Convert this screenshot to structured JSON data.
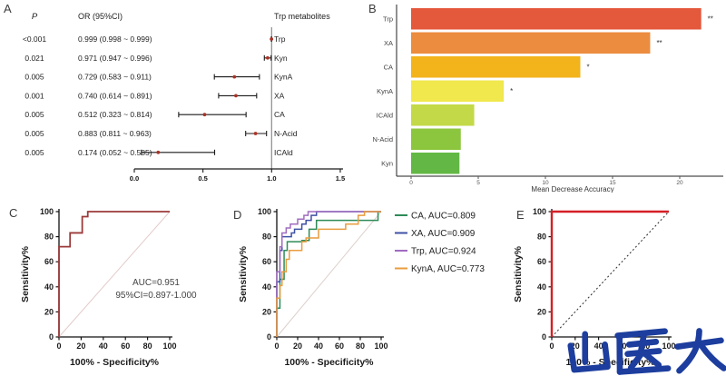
{
  "figure": {
    "background": "#ffffff",
    "watermark_text": "山医大",
    "watermark_color": "#1d3e9e"
  },
  "chart_data": [
    {
      "panel": "A",
      "type": "forest",
      "p_header": "P",
      "or_header": "OR (95%CI)",
      "group_header": "Trp metabolites",
      "rows": [
        {
          "label": "Trp",
          "p": "<0.001",
          "or_text": "0.999 (0.998 ~ 0.999)",
          "or": 0.999,
          "ci": [
            0.998,
            0.999
          ]
        },
        {
          "label": "Kyn",
          "p": "0.021",
          "or_text": "0.971 (0.947 ~ 0.996)",
          "or": 0.971,
          "ci": [
            0.947,
            0.996
          ]
        },
        {
          "label": "KynA",
          "p": "0.005",
          "or_text": "0.729 (0.583 ~ 0.911)",
          "or": 0.729,
          "ci": [
            0.583,
            0.911
          ]
        },
        {
          "label": "XA",
          "p": "0.001",
          "or_text": "0.740 (0.614 ~ 0.891)",
          "or": 0.74,
          "ci": [
            0.614,
            0.891
          ]
        },
        {
          "label": "CA",
          "p": "0.005",
          "or_text": "0.512 (0.323 ~ 0.814)",
          "or": 0.512,
          "ci": [
            0.323,
            0.814
          ]
        },
        {
          "label": "N-Acid",
          "p": "0.005",
          "or_text": "0.883 (0.811 ~ 0.963)",
          "or": 0.883,
          "ci": [
            0.811,
            0.963
          ]
        },
        {
          "label": "ICAld",
          "p": "0.005",
          "or_text": "0.174 (0.052 ~ 0.585)",
          "or": 0.174,
          "ci": [
            0.052,
            0.585
          ]
        }
      ],
      "xlim": [
        0,
        1.5
      ],
      "ref_x": 1.0,
      "xticks": [
        {
          "v": 0,
          "label": "0.0"
        },
        {
          "v": 0.5,
          "label": "0.5"
        },
        {
          "v": 1.0,
          "label": "1.0"
        },
        {
          "v": 1.5,
          "label": "1.5"
        }
      ],
      "point_color": "#a93226",
      "line_color": "#1a1a1a"
    },
    {
      "panel": "B",
      "type": "bar",
      "orientation": "horizontal",
      "categories": [
        "Trp",
        "XA",
        "CA",
        "KynA",
        "ICAld",
        "N-Acid",
        "Kyn"
      ],
      "values": [
        21.6,
        17.8,
        12.6,
        6.9,
        4.7,
        3.7,
        3.6
      ],
      "colors": [
        "#e4583c",
        "#ec8c3f",
        "#f3b31b",
        "#f0e84d",
        "#c3d947",
        "#8cc63f",
        "#63b845"
      ],
      "significance": [
        "**",
        "**",
        "*",
        "*",
        "",
        "",
        ""
      ],
      "xlabel": "Mean Decrease Accuracy",
      "xticks": [
        0,
        5,
        10,
        15,
        20
      ],
      "xlim": [
        0,
        23
      ]
    },
    {
      "panel": "C",
      "type": "roc",
      "xlabel": "100% - Specificity%",
      "ylabel": "Sensitivity%",
      "ticks": [
        0,
        20,
        40,
        60,
        80,
        100
      ],
      "xlim": [
        0,
        100
      ],
      "ylim": [
        0,
        100
      ],
      "curve_color": "#9c3a3a",
      "diag_color": "#e3cbcb",
      "diag_style": "solid",
      "annotation": [
        "AUC=0.951",
        "95%CI=0.897-1.000"
      ],
      "curve": [
        [
          0,
          0
        ],
        [
          0,
          72
        ],
        [
          10,
          72
        ],
        [
          10,
          83
        ],
        [
          21,
          83
        ],
        [
          21,
          96
        ],
        [
          26,
          96
        ],
        [
          26,
          100
        ],
        [
          100,
          100
        ]
      ]
    },
    {
      "panel": "D",
      "type": "roc",
      "xlabel": "100% - Specificity%",
      "ylabel": "Sensitivity%",
      "ticks": [
        0,
        20,
        40,
        60,
        80,
        100
      ],
      "xlim": [
        0,
        100
      ],
      "ylim": [
        0,
        100
      ],
      "diag_color": "#ddd0cc",
      "diag_style": "solid",
      "series": [
        {
          "name": "CA",
          "auc_label": "CA, AUC=0.809",
          "color": "#2e8b57",
          "curve": [
            [
              0,
              0
            ],
            [
              0,
              23
            ],
            [
              3,
              23
            ],
            [
              3,
              46
            ],
            [
              7,
              46
            ],
            [
              7,
              69
            ],
            [
              10,
              69
            ],
            [
              10,
              76
            ],
            [
              24,
              76
            ],
            [
              24,
              77
            ],
            [
              31,
              77
            ],
            [
              31,
              86
            ],
            [
              38,
              86
            ],
            [
              38,
              93
            ],
            [
              49,
              93
            ],
            [
              97,
              93
            ],
            [
              97,
              100
            ],
            [
              100,
              100
            ]
          ]
        },
        {
          "name": "XA",
          "auc_label": "XA, AUC=0.909",
          "color": "#3f51a5",
          "curve": [
            [
              0,
              0
            ],
            [
              0,
              44
            ],
            [
              3,
              44
            ],
            [
              3,
              69
            ],
            [
              5,
              69
            ],
            [
              5,
              80
            ],
            [
              14,
              80
            ],
            [
              14,
              83
            ],
            [
              17,
              83
            ],
            [
              17,
              86
            ],
            [
              24,
              86
            ],
            [
              24,
              90
            ],
            [
              28,
              90
            ],
            [
              28,
              93
            ],
            [
              33,
              93
            ],
            [
              33,
              97
            ],
            [
              38,
              97
            ],
            [
              38,
              100
            ],
            [
              100,
              100
            ]
          ]
        },
        {
          "name": "Trp",
          "auc_label": "Trp, AUC=0.924",
          "color": "#a06cc0",
          "curve": [
            [
              0,
              0
            ],
            [
              0,
              52
            ],
            [
              3,
              52
            ],
            [
              3,
              72
            ],
            [
              5,
              72
            ],
            [
              5,
              83
            ],
            [
              9,
              83
            ],
            [
              9,
              87
            ],
            [
              13,
              87
            ],
            [
              13,
              90
            ],
            [
              20,
              90
            ],
            [
              20,
              94
            ],
            [
              26,
              94
            ],
            [
              26,
              97
            ],
            [
              30,
              97
            ],
            [
              30,
              100
            ],
            [
              100,
              100
            ]
          ]
        },
        {
          "name": "KynA",
          "auc_label": "KynA, AUC=0.773",
          "color": "#e99c3f",
          "curve": [
            [
              0,
              0
            ],
            [
              0,
              31
            ],
            [
              3,
              31
            ],
            [
              3,
              41
            ],
            [
              5,
              41
            ],
            [
              5,
              52
            ],
            [
              9,
              52
            ],
            [
              9,
              62
            ],
            [
              12,
              62
            ],
            [
              12,
              69
            ],
            [
              24,
              69
            ],
            [
              24,
              76
            ],
            [
              28,
              76
            ],
            [
              28,
              79
            ],
            [
              40,
              79
            ],
            [
              40,
              86
            ],
            [
              66,
              86
            ],
            [
              66,
              90
            ],
            [
              78,
              90
            ],
            [
              78,
              97
            ],
            [
              84,
              97
            ],
            [
              84,
              100
            ],
            [
              100,
              100
            ]
          ]
        }
      ]
    },
    {
      "panel": "E",
      "type": "roc",
      "xlabel": "100% - Specificity%",
      "ylabel": "Sensitivity%",
      "ticks": [
        0,
        20,
        40,
        60,
        80,
        100
      ],
      "xlim": [
        0,
        100
      ],
      "ylim": [
        0,
        100
      ],
      "curve_color": "#d51f26",
      "diag_color": "#2b2b2b",
      "diag_style": "dotted",
      "curve": [
        [
          0,
          0
        ],
        [
          0,
          100
        ],
        [
          100,
          100
        ]
      ]
    }
  ]
}
